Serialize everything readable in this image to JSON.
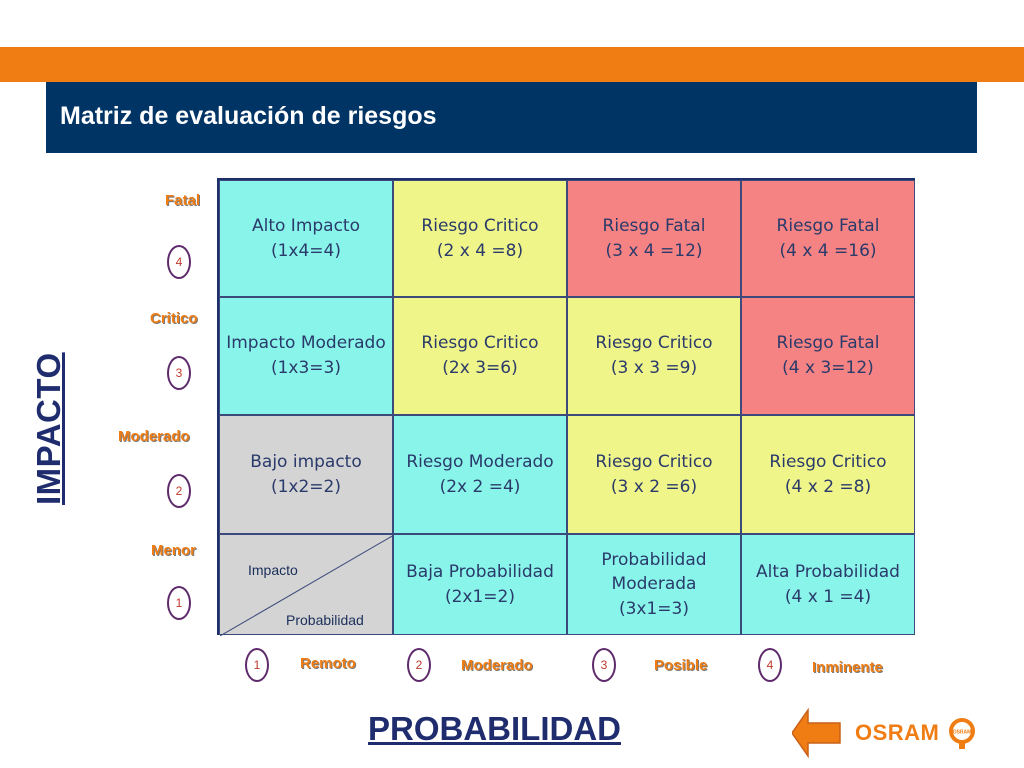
{
  "header": {
    "title": "Matriz de evaluación de riesgos"
  },
  "impact_axis": {
    "title": "IMPACTO",
    "levels": [
      {
        "label": "Fatal",
        "number": "4"
      },
      {
        "label": "Critico",
        "number": "3"
      },
      {
        "label": "Moderado",
        "number": "2"
      },
      {
        "label": "Menor",
        "number": "1"
      }
    ]
  },
  "probability_axis": {
    "title": "PROBABILIDAD",
    "levels": [
      {
        "number": "1",
        "label": "Remoto"
      },
      {
        "number": "2",
        "label": "Moderado"
      },
      {
        "number": "3",
        "label": "Posible"
      },
      {
        "number": "4",
        "label": "Inminente"
      }
    ]
  },
  "matrix": {
    "corner": {
      "top": "Impacto",
      "bottom": "Probabilidad"
    },
    "rows": [
      [
        {
          "l1": "Alto Impacto",
          "l2": "(1x4=4)",
          "color": "#89f5ea"
        },
        {
          "l1": "Riesgo Critico",
          "l2": "(2 x 4 =8)",
          "color": "#f0f58a"
        },
        {
          "l1": "Riesgo Fatal",
          "l2": "(3 x 4 =12)",
          "color": "#f58383"
        },
        {
          "l1": "Riesgo Fatal",
          "l2": "(4 x 4 =16)",
          "color": "#f58383"
        }
      ],
      [
        {
          "l1": "Impacto Moderado",
          "l2": "(1x3=3)",
          "color": "#89f5ea"
        },
        {
          "l1": "Riesgo Critico",
          "l2": "(2x 3=6)",
          "color": "#f0f58a"
        },
        {
          "l1": "Riesgo Critico",
          "l2": "(3 x 3 =9)",
          "color": "#f0f58a"
        },
        {
          "l1": "Riesgo Fatal",
          "l2": "(4 x 3=12)",
          "color": "#f58383"
        }
      ],
      [
        {
          "l1": "Bajo impacto",
          "l2": "(1x2=2)",
          "color": "#d4d4d4"
        },
        {
          "l1": "Riesgo Moderado",
          "l2": "(2x 2 =4)",
          "color": "#89f5ea"
        },
        {
          "l1": "Riesgo Critico",
          "l2": "(3 x 2 =6)",
          "color": "#f0f58a"
        },
        {
          "l1": "Riesgo Critico",
          "l2": "(4 x 2 =8)",
          "color": "#f0f58a"
        }
      ],
      [
        null,
        {
          "l1": "Baja Probabilidad",
          "l2": "(2x1=2)",
          "color": "#89f5ea"
        },
        {
          "l1": "Probabilidad Moderada",
          "l2": "(3x1=3)",
          "color": "#89f5ea"
        },
        {
          "l1": "Alta Probabilidad",
          "l2": "(4 x 1 =4)",
          "color": "#89f5ea"
        }
      ]
    ]
  },
  "logo": {
    "text": "OSRAM",
    "badge_text": "OSRAM"
  },
  "colors": {
    "accent": "#f07d13",
    "header_bg": "#003465",
    "navy_text": "#1f2d6e"
  }
}
